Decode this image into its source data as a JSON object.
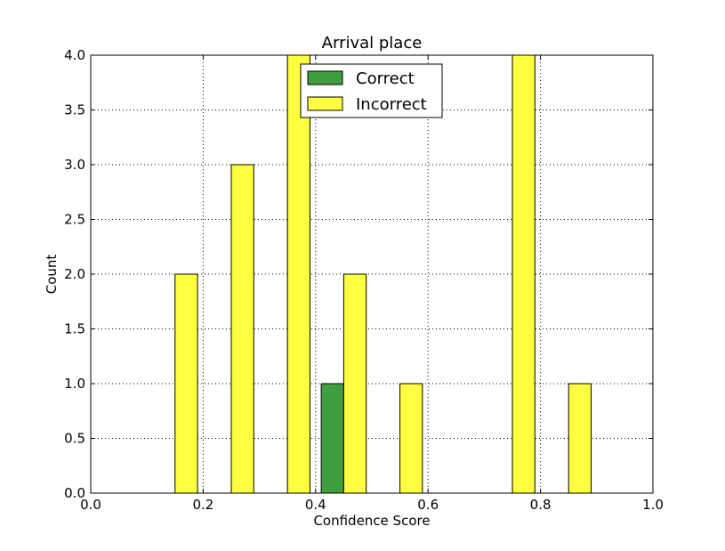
{
  "chart_data": {
    "type": "bar",
    "title": "Arrival place",
    "xlabel": "Confidence Score",
    "ylabel": "Count",
    "xlim": [
      0.0,
      1.0
    ],
    "ylim": [
      0.0,
      4.0
    ],
    "xticks": [
      "0.0",
      "0.2",
      "0.4",
      "0.6",
      "0.8",
      "1.0"
    ],
    "yticks": [
      "0.0",
      "0.5",
      "1.0",
      "1.5",
      "2.0",
      "2.5",
      "3.0",
      "3.5",
      "4.0"
    ],
    "grid": true,
    "legend_position": "top-center",
    "series": [
      {
        "name": "Correct",
        "color": "#3f9f3f",
        "bars": [
          {
            "x_start": 0.0,
            "x_end": 0.04,
            "value": 0
          },
          {
            "x_start": 0.1,
            "x_end": 0.14,
            "value": 0
          },
          {
            "x_start": 0.2,
            "x_end": 0.24,
            "value": 0
          },
          {
            "x_start": 0.3,
            "x_end": 0.34,
            "value": 0
          },
          {
            "x_start": 0.41,
            "x_end": 0.45,
            "value": 1
          },
          {
            "x_start": 0.51,
            "x_end": 0.55,
            "value": 0
          },
          {
            "x_start": 0.61,
            "x_end": 0.65,
            "value": 0
          },
          {
            "x_start": 0.71,
            "x_end": 0.75,
            "value": 0
          },
          {
            "x_start": 0.81,
            "x_end": 0.85,
            "value": 0
          },
          {
            "x_start": 0.91,
            "x_end": 0.95,
            "value": 0
          }
        ]
      },
      {
        "name": "Incorrect",
        "color": "#ffff40",
        "bars": [
          {
            "x_start": 0.05,
            "x_end": 0.09,
            "value": 0
          },
          {
            "x_start": 0.15,
            "x_end": 0.19,
            "value": 2
          },
          {
            "x_start": 0.25,
            "x_end": 0.29,
            "value": 3
          },
          {
            "x_start": 0.35,
            "x_end": 0.39,
            "value": 4
          },
          {
            "x_start": 0.45,
            "x_end": 0.49,
            "value": 2
          },
          {
            "x_start": 0.55,
            "x_end": 0.59,
            "value": 1
          },
          {
            "x_start": 0.65,
            "x_end": 0.69,
            "value": 0
          },
          {
            "x_start": 0.75,
            "x_end": 0.79,
            "value": 4
          },
          {
            "x_start": 0.85,
            "x_end": 0.89,
            "value": 1
          },
          {
            "x_start": 0.95,
            "x_end": 0.99,
            "value": 0
          }
        ]
      }
    ]
  }
}
